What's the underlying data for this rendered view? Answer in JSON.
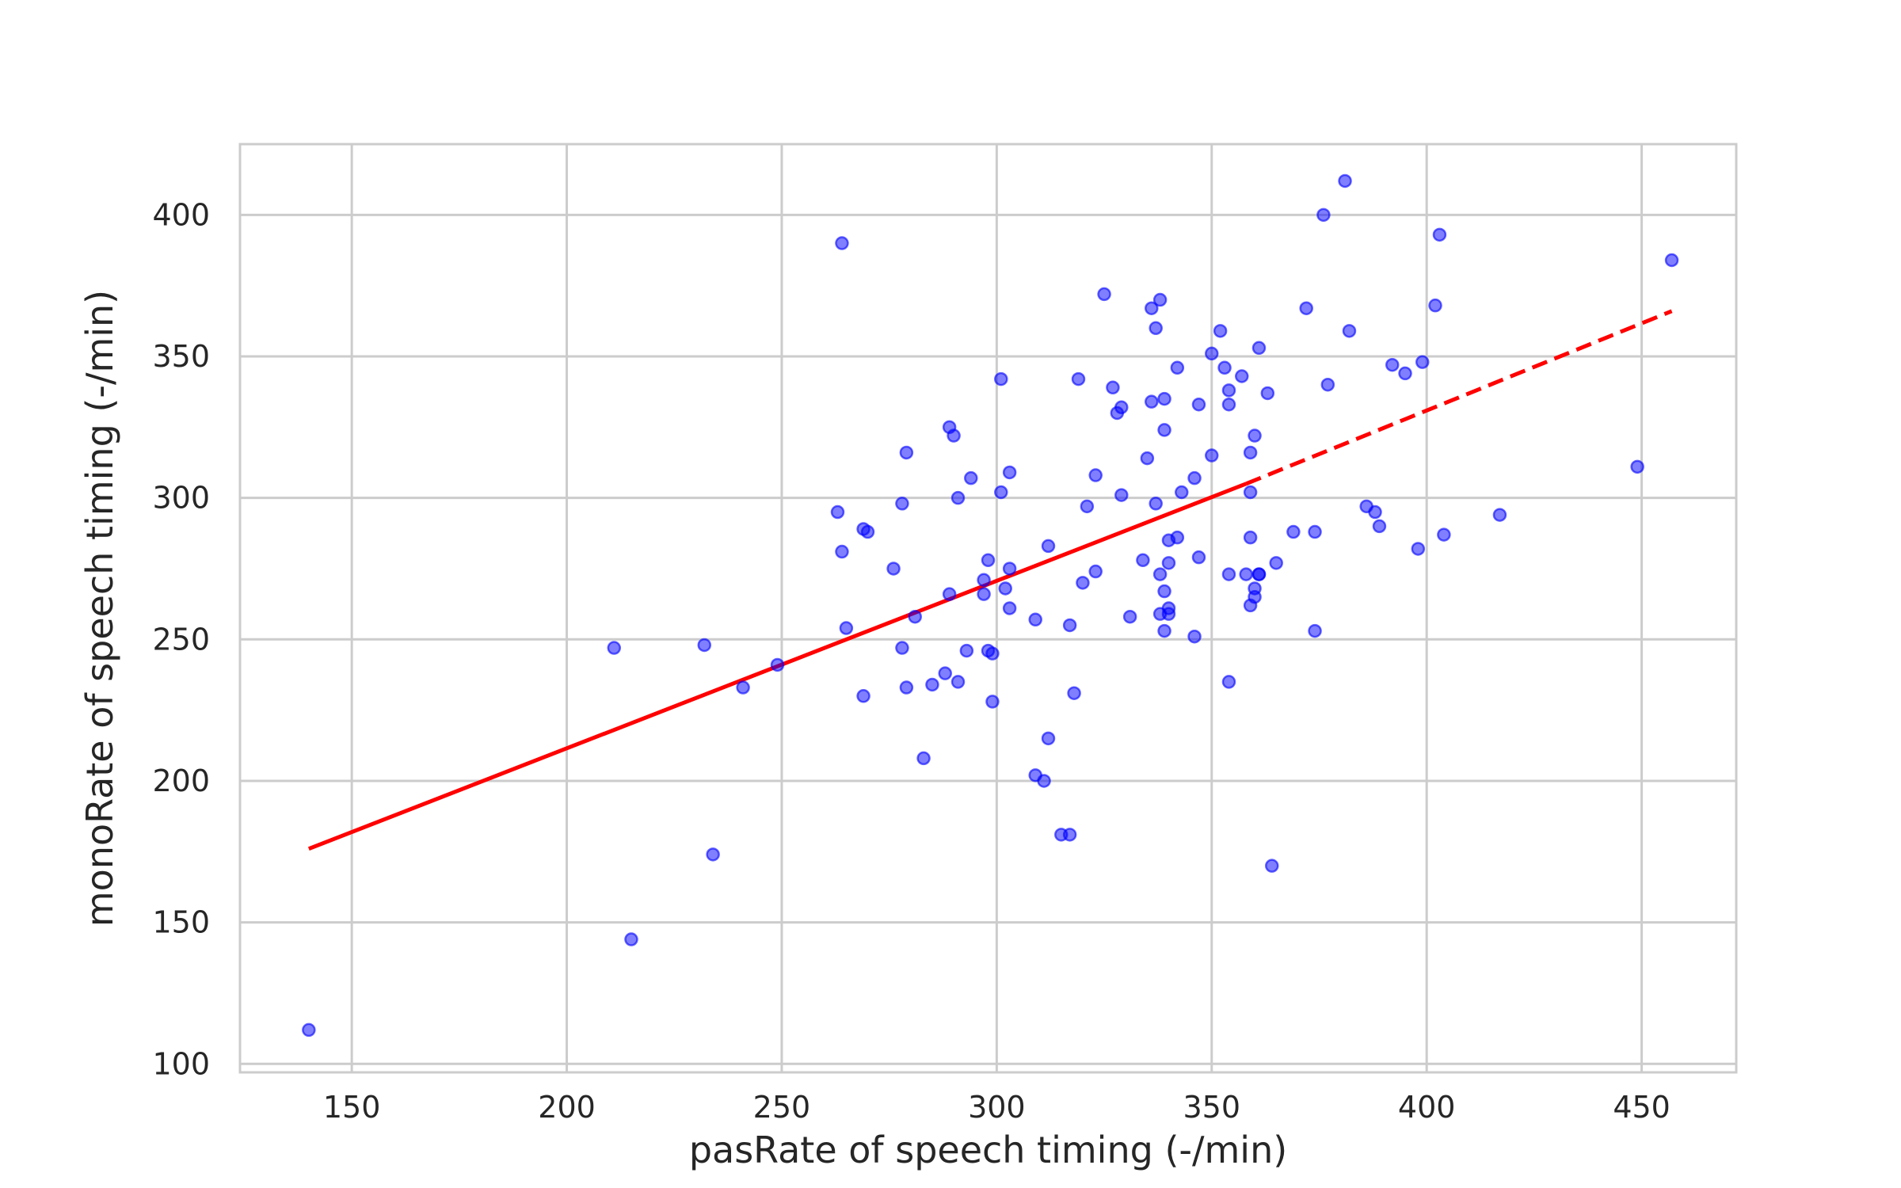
{
  "chart_data": {
    "type": "scatter",
    "title": "",
    "xlabel": "pasRate of speech timing (-/min)",
    "ylabel": "monoRate of speech timing (-/min)",
    "xlim": [
      124,
      472
    ],
    "ylim": [
      97,
      425
    ],
    "x_ticks": [
      150,
      200,
      250,
      300,
      350,
      400,
      450
    ],
    "y_ticks": [
      100,
      150,
      200,
      250,
      300,
      350,
      400
    ],
    "grid": true,
    "legend": "none",
    "colors": {
      "points": "#0000ff",
      "fit_line": "#ff0000",
      "grid": "#cccccc",
      "axes_frame": "#cccccc",
      "text": "#262626"
    },
    "series": [
      {
        "kind": "points",
        "x": [
          140,
          211,
          215,
          232,
          234,
          241,
          249,
          263,
          264,
          264,
          265,
          269,
          269,
          270,
          276,
          278,
          278,
          279,
          279,
          281,
          283,
          285,
          288,
          289,
          289,
          290,
          291,
          291,
          293,
          294,
          297,
          297,
          298,
          298,
          299,
          299,
          301,
          301,
          302,
          303,
          303,
          303,
          309,
          309,
          311,
          312,
          312,
          315,
          317,
          317,
          318,
          319,
          320,
          321,
          323,
          323,
          325,
          327,
          328,
          329,
          329,
          331,
          334,
          335,
          336,
          336,
          337,
          337,
          338,
          338,
          338,
          339,
          339,
          339,
          339,
          340,
          340,
          340,
          340,
          342,
          342,
          343,
          346,
          346,
          347,
          347,
          350,
          350,
          352,
          353,
          354,
          354,
          354,
          354,
          357,
          358,
          359,
          359,
          359,
          359,
          360,
          360,
          360,
          361,
          361,
          361,
          363,
          365,
          364,
          369,
          372,
          374,
          374,
          376,
          377,
          381,
          382,
          386,
          388,
          389,
          392,
          395,
          398,
          399,
          402,
          403,
          404,
          417,
          449,
          457
        ],
        "y": [
          112,
          247,
          144,
          248,
          174,
          233,
          241,
          295,
          281,
          390,
          254,
          230,
          289,
          288,
          275,
          298,
          247,
          316,
          233,
          258,
          208,
          234,
          238,
          325,
          266,
          322,
          300,
          235,
          246,
          307,
          266,
          271,
          278,
          246,
          245,
          228,
          302,
          342,
          268,
          275,
          261,
          309,
          202,
          257,
          200,
          283,
          215,
          181,
          181,
          255,
          231,
          342,
          270,
          297,
          308,
          274,
          372,
          339,
          330,
          301,
          332,
          258,
          278,
          314,
          367,
          334,
          360,
          298,
          259,
          273,
          370,
          253,
          335,
          267,
          324,
          277,
          261,
          285,
          259,
          286,
          346,
          302,
          251,
          307,
          279,
          333,
          315,
          351,
          359,
          346,
          338,
          333,
          273,
          235,
          343,
          273,
          302,
          286,
          262,
          316,
          265,
          268,
          322,
          353,
          273,
          273,
          337,
          277,
          170,
          288,
          367,
          288,
          253,
          400,
          340,
          412,
          359,
          297,
          295,
          290,
          347,
          344,
          282,
          348,
          368,
          393,
          287,
          294,
          311,
          384
        ]
      },
      {
        "kind": "fit-line",
        "style": "solid",
        "x": [
          140,
          358
        ],
        "y": [
          176,
          305
        ]
      },
      {
        "kind": "fit-line",
        "style": "dashed",
        "x": [
          358,
          457
        ],
        "y": [
          305,
          366
        ]
      }
    ]
  }
}
